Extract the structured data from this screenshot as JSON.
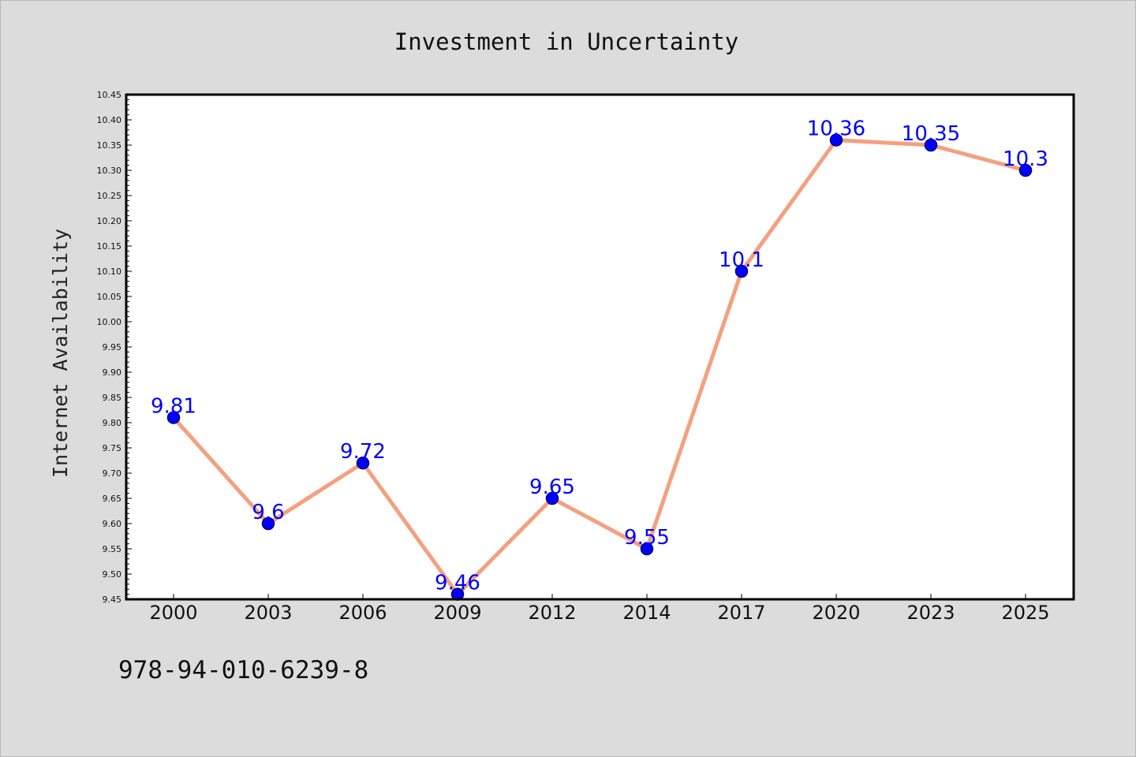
{
  "chart_data": {
    "type": "line",
    "title": "Investment in Uncertainty",
    "ylabel": "Internet Availability",
    "xlabel": "",
    "categories": [
      "2000",
      "2003",
      "2006",
      "2009",
      "2012",
      "2014",
      "2017",
      "2020",
      "2023",
      "2025"
    ],
    "values": [
      9.81,
      9.6,
      9.72,
      9.46,
      9.65,
      9.55,
      10.1,
      10.36,
      10.35,
      10.3
    ],
    "data_labels": [
      "9.81",
      "9.6",
      "9.72",
      "9.46",
      "9.65",
      "9.55",
      "10.1",
      "10.36",
      "10.35",
      "10.3"
    ],
    "ylim": [
      9.45,
      10.45
    ],
    "ytick_step": 0.05,
    "ytick_decimals": 2,
    "grid": false,
    "legend": "none",
    "colors": {
      "line": "#f4a07f",
      "marker_fill": "#0000ff",
      "marker_edge": "#000080",
      "data_label": "#0000ff",
      "plot_background": "#ffffff",
      "page_background": "#dcdcdc"
    }
  },
  "footer_text": "978-94-010-6239-8"
}
